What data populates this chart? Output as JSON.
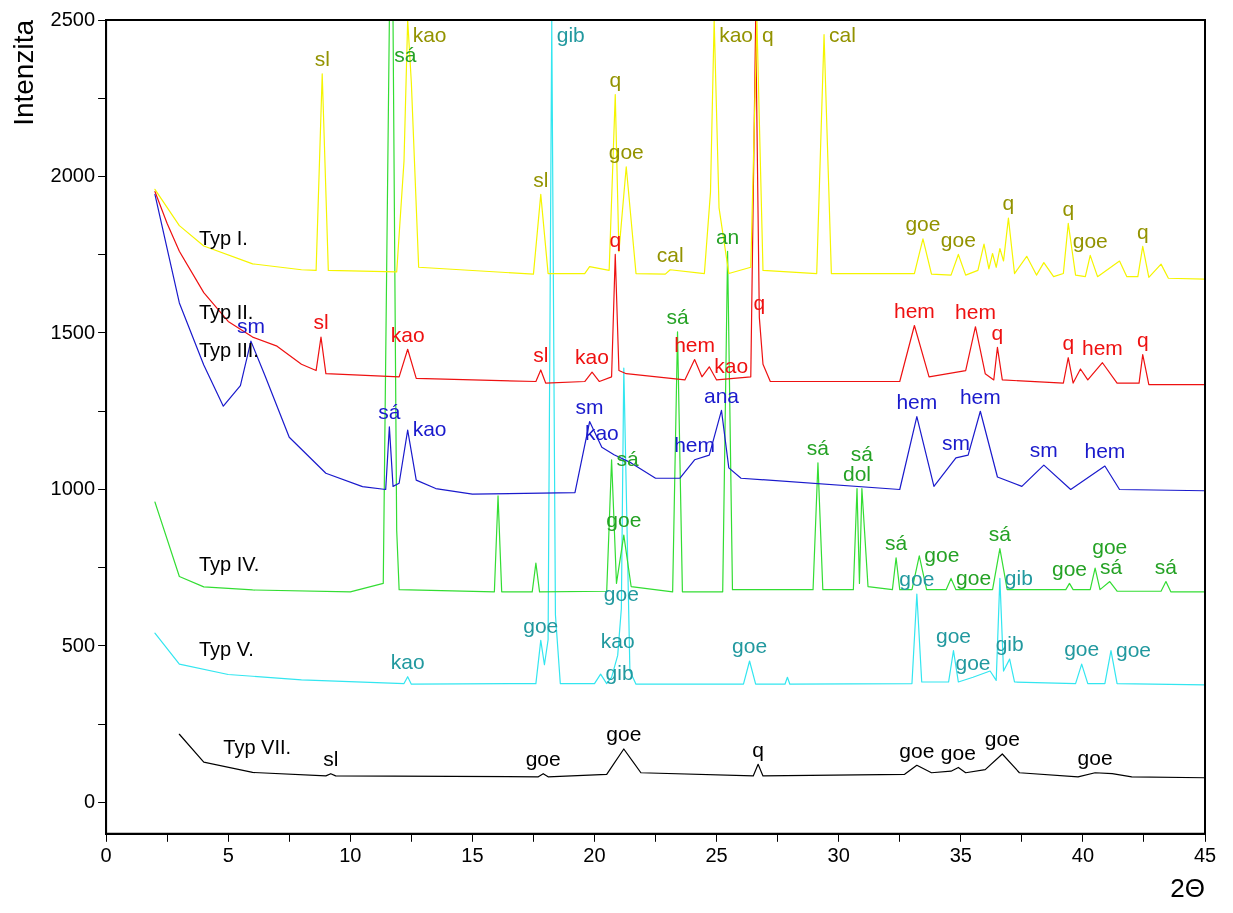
{
  "chart_data": {
    "type": "line",
    "xlabel": "2Θ",
    "ylabel": "Intenzita",
    "xlim": [
      0,
      45
    ],
    "ylim": [
      -100,
      2500
    ],
    "xticks": [
      0,
      {
        "value": 2.5,
        "label": null
      },
      5,
      {
        "value": 7.5,
        "label": null
      },
      10,
      {
        "value": 12.5,
        "label": null
      },
      15,
      {
        "value": 17.5,
        "label": null
      },
      20,
      {
        "value": 22.5,
        "label": null
      },
      25,
      {
        "value": 27.5,
        "label": null
      },
      30,
      {
        "value": 32.5,
        "label": null
      },
      35,
      {
        "value": 37.5,
        "label": null
      },
      40,
      {
        "value": 42.5,
        "label": null
      },
      45
    ],
    "yticks": [
      0,
      {
        "value": 250,
        "label": null
      },
      500,
      {
        "value": 750,
        "label": null
      },
      1000,
      {
        "value": 1250,
        "label": null
      },
      1500,
      {
        "value": 1750,
        "label": null
      },
      2000,
      {
        "value": 2250,
        "label": null
      },
      2500
    ],
    "grid": false,
    "legend": false,
    "marker": "none",
    "line_style": "solid",
    "series": [
      {
        "name": "Typ I.",
        "color": "#f5f500",
        "x": [
          2,
          3,
          4,
          6,
          8,
          8.6,
          8.85,
          9.1,
          11.9,
          12.2,
          12.35,
          12.5,
          12.8,
          17.5,
          17.8,
          18.1,
          19.6,
          19.8,
          20.6,
          20.85,
          21.0,
          21.3,
          21.7,
          22.9,
          23.1,
          24.5,
          24.75,
          24.9,
          25.1,
          25.5,
          26.4,
          26.65,
          26.9,
          29.1,
          29.4,
          29.7,
          33.1,
          33.45,
          33.8,
          34.6,
          34.9,
          35.2,
          35.7,
          35.95,
          36.15,
          36.3,
          36.45,
          36.6,
          36.75,
          36.95,
          37.2,
          37.7,
          38.1,
          38.4,
          38.8,
          39.2,
          39.4,
          39.7,
          40.1,
          40.3,
          40.6,
          41.5,
          41.8,
          42.25,
          42.45,
          42.7,
          43.2,
          43.5,
          45
        ],
        "values": [
          1959,
          1843,
          1778,
          1721,
          1702,
          1700,
          2328,
          1700,
          1695,
          2050,
          2500,
          2300,
          1710,
          1688,
          1943,
          1690,
          1690,
          1712,
          1700,
          2262,
          1760,
          2031,
          1690,
          1688,
          1702,
          1690,
          1950,
          2500,
          1900,
          1690,
          1710,
          2500,
          1700,
          1690,
          2453,
          1690,
          1690,
          1801,
          1688,
          1685,
          1751,
          1685,
          1700,
          1784,
          1705,
          1754,
          1710,
          1770,
          1730,
          1867,
          1690,
          1745,
          1685,
          1725,
          1680,
          1690,
          1850,
          1685,
          1680,
          1748,
          1680,
          1730,
          1680,
          1680,
          1777,
          1678,
          1720,
          1675,
          1672
        ]
      },
      {
        "name": "Typ II.",
        "color": "#ee1111",
        "x": [
          2,
          2.5,
          3,
          4,
          5,
          6,
          7,
          8,
          8.6,
          8.8,
          9.0,
          12.0,
          12.35,
          12.7,
          17.6,
          17.8,
          18.0,
          19.6,
          19.9,
          20.2,
          20.7,
          20.85,
          21.0,
          21.3,
          23.7,
          24.1,
          24.4,
          24.7,
          25.0,
          26.4,
          26.6,
          26.75,
          26.9,
          27.2,
          32.5,
          33.1,
          33.7,
          35.2,
          35.6,
          36.0,
          36.35,
          36.5,
          36.7,
          39.2,
          39.4,
          39.6,
          39.9,
          40.2,
          40.8,
          41.4,
          42.3,
          42.45,
          42.7,
          45
        ],
        "values": [
          1952,
          1850,
          1761,
          1629,
          1537,
          1487,
          1458,
          1400,
          1380,
          1487,
          1370,
          1360,
          1448,
          1355,
          1345,
          1382,
          1340,
          1345,
          1375,
          1345,
          1360,
          1751,
          1380,
          1370,
          1350,
          1415,
          1360,
          1392,
          1350,
          1360,
          2500,
          1550,
          1400,
          1345,
          1345,
          1524,
          1360,
          1380,
          1520,
          1370,
          1350,
          1454,
          1350,
          1340,
          1421,
          1340,
          1385,
          1350,
          1405,
          1340,
          1340,
          1431,
          1335,
          1335
        ]
      },
      {
        "name": "Typ III.",
        "color": "#1a1acc",
        "x": [
          2,
          3,
          4,
          4.8,
          5.5,
          5.93,
          6.5,
          7.5,
          9,
          10.5,
          11.45,
          11.6,
          11.75,
          12.0,
          12.35,
          12.7,
          13.5,
          15,
          19.2,
          19.8,
          20.3,
          20.8,
          21.5,
          22.5,
          23.5,
          24.1,
          24.7,
          25.2,
          25.5,
          26,
          32.5,
          33.2,
          33.9,
          34.8,
          35.3,
          35.8,
          36.5,
          37.5,
          38.4,
          39.5,
          40.9,
          41.5,
          45
        ],
        "values": [
          1943,
          1596,
          1398,
          1266,
          1332,
          1474,
          1365,
          1167,
          1052,
          1009,
          1000,
          1200,
          1010,
          1020,
          1190,
          1030,
          1003,
          985,
          990,
          1217,
          1135,
          1111,
          1085,
          1036,
          1036,
          1095,
          1110,
          1253,
          1069,
          1036,
          1000,
          1233,
          1010,
          1101,
          1110,
          1250,
          1040,
          1010,
          1078,
          1000,
          1075,
          1000,
          996
        ]
      },
      {
        "name": "Typ IV.",
        "color": "#33dd33",
        "x": [
          2,
          3,
          4,
          6,
          10,
          11.35,
          11.6,
          11.75,
          11.9,
          12.0,
          15.9,
          16.05,
          16.2,
          17.45,
          17.6,
          17.75,
          20.5,
          20.7,
          20.9,
          21.2,
          21.5,
          23.2,
          23.4,
          23.6,
          25.25,
          25.45,
          25.65,
          28.95,
          29.15,
          29.35,
          30.6,
          30.75,
          30.85,
          30.95,
          31.2,
          32.2,
          32.35,
          32.5,
          33.0,
          33.3,
          33.6,
          34.4,
          34.6,
          34.8,
          36.3,
          36.6,
          36.9,
          39.3,
          39.45,
          39.6,
          40.3,
          40.5,
          40.7,
          41.1,
          41.4,
          43.2,
          43.4,
          43.6,
          45
        ],
        "values": [
          960,
          722,
          689,
          679,
          673,
          700,
          2500,
          2500,
          870,
          680,
          673,
          980,
          673,
          673,
          765,
          673,
          675,
          1095,
          700,
          854,
          690,
          673,
          1504,
          673,
          673,
          1761,
          680,
          680,
          1085,
          680,
          680,
          1003,
          700,
          1003,
          690,
          680,
          782,
          680,
          680,
          788,
          680,
          680,
          716,
          680,
          680,
          811,
          680,
          680,
          700,
          680,
          680,
          749,
          680,
          706,
          675,
          675,
          706,
          673,
          673
        ]
      },
      {
        "name": "Typ V.",
        "color": "#33e6f0",
        "x": [
          2,
          3,
          5,
          8,
          12.2,
          12.35,
          12.5,
          17.6,
          17.8,
          17.95,
          18.1,
          18.25,
          18.4,
          18.6,
          20.0,
          20.25,
          20.5,
          20.7,
          20.95,
          21.1,
          21.2,
          21.45,
          21.7,
          26.1,
          26.35,
          26.6,
          27.8,
          27.9,
          28.0,
          33.0,
          33.2,
          33.4,
          34.5,
          34.7,
          34.9,
          35.5,
          36.2,
          36.45,
          36.6,
          36.75,
          37.0,
          37.2,
          39.7,
          39.95,
          40.2,
          40.9,
          41.15,
          41.4,
          45
        ],
        "values": [
          541,
          442,
          409,
          392,
          380,
          402,
          378,
          380,
          518,
          440,
          520,
          2500,
          600,
          380,
          380,
          410,
          380,
          400,
          470,
          620,
          1388,
          420,
          378,
          378,
          452,
          378,
          378,
          400,
          378,
          380,
          666,
          385,
          385,
          485,
          385,
          400,
          420,
          390,
          716,
          420,
          458,
          385,
          380,
          442,
          380,
          380,
          485,
          380,
          376
        ]
      },
      {
        "name": "Typ VII.",
        "color": "#000000",
        "x": [
          3,
          4,
          6,
          9,
          9.2,
          9.4,
          17.7,
          17.9,
          18.1,
          20.5,
          21.2,
          21.9,
          26.5,
          26.7,
          26.9,
          32.7,
          33.2,
          33.8,
          34.6,
          34.9,
          35.2,
          36.0,
          36.7,
          37.4,
          39.8,
          40.5,
          41.2,
          42,
          45
        ],
        "values": [
          218,
          129,
          96,
          85,
          92,
          85,
          82,
          92,
          82,
          90,
          171,
          95,
          85,
          122,
          85,
          90,
          119,
          95,
          100,
          112,
          95,
          105,
          155,
          95,
          82,
          95,
          92,
          82,
          79
        ]
      }
    ],
    "annotations": [
      {
        "text": "sl",
        "x": 8.85,
        "y": 2328
      },
      {
        "text": "kao",
        "x": 12.35,
        "y": 2500
      },
      {
        "text": "q",
        "x": 20.85,
        "y": 2262
      },
      {
        "text": "goe",
        "x": 21.3,
        "y": 2031
      },
      {
        "text": "sl",
        "x": 17.8,
        "y": 1943
      },
      {
        "text": "cal",
        "x": 23.1,
        "y": 1702
      },
      {
        "text": "kao",
        "x": 24.9,
        "y": 2500
      },
      {
        "text": "q",
        "x": 26.65,
        "y": 2500
      },
      {
        "text": "cal",
        "x": 29.4,
        "y": 2453
      },
      {
        "text": "goe",
        "x": 33.45,
        "y": 1801
      },
      {
        "text": "goe",
        "x": 34.9,
        "y": 1751
      },
      {
        "text": "q",
        "x": 36.95,
        "y": 1867
      },
      {
        "text": "q",
        "x": 39.4,
        "y": 1850
      },
      {
        "text": "goe",
        "x": 40.3,
        "y": 1748
      },
      {
        "text": "q",
        "x": 42.45,
        "y": 1777
      },
      {
        "text": "sá",
        "x": 11.6,
        "y": 2500
      },
      {
        "text": "gib",
        "x": 18.25,
        "y": 2500
      },
      {
        "text": "sl",
        "x": 8.8,
        "y": 1487
      },
      {
        "text": "kao",
        "x": 12.35,
        "y": 1448
      },
      {
        "text": "q",
        "x": 20.85,
        "y": 1751
      },
      {
        "text": "sl",
        "x": 17.8,
        "y": 1382
      },
      {
        "text": "kao",
        "x": 19.9,
        "y": 1375
      },
      {
        "text": "hem",
        "x": 24.1,
        "y": 1415
      },
      {
        "text": "kao",
        "x": 24.7,
        "y": 1392
      },
      {
        "text": "q",
        "x": 26.75,
        "y": 1550
      },
      {
        "text": "hem",
        "x": 33.1,
        "y": 1524
      },
      {
        "text": "hem",
        "x": 35.6,
        "y": 1520
      },
      {
        "text": "q",
        "x": 36.5,
        "y": 1454
      },
      {
        "text": "q",
        "x": 39.4,
        "y": 1421
      },
      {
        "text": "hem",
        "x": 40.8,
        "y": 1405
      },
      {
        "text": "q",
        "x": 42.45,
        "y": 1431
      },
      {
        "text": "sm",
        "x": 5.93,
        "y": 1474
      },
      {
        "text": "sá",
        "x": 11.6,
        "y": 1200
      },
      {
        "text": "kao",
        "x": 12.35,
        "y": 1190
      },
      {
        "text": "sm",
        "x": 19.8,
        "y": 1217
      },
      {
        "text": "kao",
        "x": 20.3,
        "y": 1135
      },
      {
        "text": "hem",
        "x": 24.1,
        "y": 1095
      },
      {
        "text": "ana",
        "x": 25.2,
        "y": 1253
      },
      {
        "text": "hem",
        "x": 33.2,
        "y": 1233
      },
      {
        "text": "hem",
        "x": 35.8,
        "y": 1250
      },
      {
        "text": "sm",
        "x": 34.8,
        "y": 1101
      },
      {
        "text": "sm",
        "x": 38.4,
        "y": 1078
      },
      {
        "text": "hem",
        "x": 40.9,
        "y": 1075
      },
      {
        "text": "sá",
        "x": 20.7,
        "y": 1095
      },
      {
        "text": "goe",
        "x": 21.2,
        "y": 854
      },
      {
        "text": "sá",
        "x": 23.4,
        "y": 1504
      },
      {
        "text": "an",
        "x": 25.45,
        "y": 1761
      },
      {
        "text": "sá",
        "x": 29.15,
        "y": 1085
      },
      {
        "text": "dol",
        "x": 30.75,
        "y": 1003
      },
      {
        "text": "sá",
        "x": 30.95,
        "y": 1003
      },
      {
        "text": "sá",
        "x": 32.35,
        "y": 782
      },
      {
        "text": "goe",
        "x": 33.3,
        "y": 788
      },
      {
        "text": "goe",
        "x": 34.6,
        "y": 716
      },
      {
        "text": "sá",
        "x": 36.6,
        "y": 811
      },
      {
        "text": "goe",
        "x": 39.45,
        "y": 700
      },
      {
        "text": "sá",
        "x": 40.5,
        "y": 749
      },
      {
        "text": "goe",
        "x": 41.1,
        "y": 706
      },
      {
        "text": "sá",
        "x": 43.4,
        "y": 706
      },
      {
        "text": "goe",
        "x": 17.8,
        "y": 518
      },
      {
        "text": "goe",
        "x": 21.1,
        "y": 620
      },
      {
        "text": "kao",
        "x": 20.95,
        "y": 470
      },
      {
        "text": "gib",
        "x": 20.25,
        "y": 410
      },
      {
        "text": "kao",
        "x": 12.35,
        "y": 402
      },
      {
        "text": "goe",
        "x": 26.35,
        "y": 452
      },
      {
        "text": "goe",
        "x": 33.2,
        "y": 666
      },
      {
        "text": "goe",
        "x": 34.7,
        "y": 485
      },
      {
        "text": "goe",
        "x": 35.5,
        "y": 400
      },
      {
        "text": "gib",
        "x": 36.6,
        "y": 716
      },
      {
        "text": "gib",
        "x": 37.0,
        "y": 458
      },
      {
        "text": "goe",
        "x": 39.95,
        "y": 442
      },
      {
        "text": "goe",
        "x": 41.15,
        "y": 485
      },
      {
        "text": "sl",
        "x": 9.2,
        "y": 92
      },
      {
        "text": "goe",
        "x": 17.9,
        "y": 92
      },
      {
        "text": "goe",
        "x": 21.2,
        "y": 171
      },
      {
        "text": "q",
        "x": 26.7,
        "y": 122
      },
      {
        "text": "goe",
        "x": 33.2,
        "y": 119
      },
      {
        "text": "goe",
        "x": 34.9,
        "y": 112
      },
      {
        "text": "goe",
        "x": 36.7,
        "y": 155
      },
      {
        "text": "goe",
        "x": 40.5,
        "y": 95
      }
    ]
  }
}
